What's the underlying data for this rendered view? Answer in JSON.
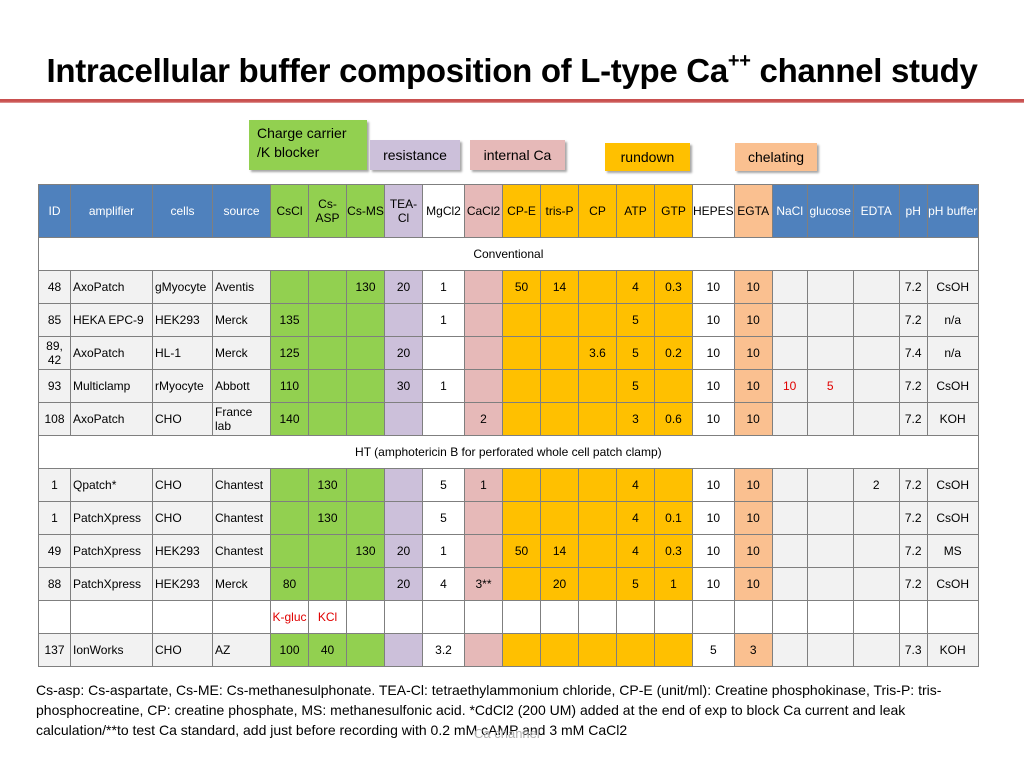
{
  "title": {
    "main": "Intracellular buffer composition of L-type Ca",
    "sup": "++",
    "tail": " channel study"
  },
  "legend": {
    "charge": "Charge carrier /K blocker",
    "resistance": "resistance",
    "internal_ca": "internal Ca",
    "rundown": "rundown",
    "chelating": "chelating"
  },
  "colors": {
    "header_blue": "#4f81bd",
    "green": "#92d050",
    "purple": "#ccc0da",
    "pink": "#e6b9b8",
    "orange": "#ffc000",
    "peach": "#fac090",
    "red_text": "#e00000",
    "title_rule": "#c9504f"
  },
  "table": {
    "headers": [
      "ID",
      "amplifier",
      "cells",
      "source",
      "CsCl",
      "Cs-ASP",
      "Cs-MS",
      "TEA-Cl",
      "MgCl2",
      "CaCl2",
      "CP-E",
      "tris-P",
      "CP",
      "ATP",
      "GTP",
      "HEPES",
      "EGTA",
      "NaCl",
      "glucose",
      "EDTA",
      "pH",
      "pH buffer"
    ],
    "section_conventional": "Conventional",
    "section_ht": "HT (amphotericin B for perforated whole cell patch clamp)",
    "rows_conventional": [
      [
        "48",
        "AxoPatch",
        "gMyocyte",
        "Aventis",
        "",
        "",
        "130",
        "20",
        "1",
        "",
        "50",
        "14",
        "",
        "4",
        "0.3",
        "10",
        "10",
        "",
        "",
        "",
        "7.2",
        "CsOH"
      ],
      [
        "85",
        "HEKA EPC-9",
        "HEK293",
        "Merck",
        "135",
        "",
        "",
        "",
        "1",
        "",
        "",
        "",
        "",
        "5",
        "",
        "10",
        "10",
        "",
        "",
        "",
        "7.2",
        "n/a"
      ],
      [
        "89, 42",
        "AxoPatch",
        "HL-1",
        "Merck",
        "125",
        "",
        "",
        "20",
        "",
        "",
        "",
        "",
        "3.6",
        "5",
        "0.2",
        "10",
        "10",
        "",
        "",
        "",
        "7.4",
        "n/a"
      ],
      [
        "93",
        "Multiclamp",
        "rMyocyte",
        "Abbott",
        "110",
        "",
        "",
        "30",
        "1",
        "",
        "",
        "",
        "",
        "5",
        "",
        "10",
        "10",
        "10",
        "5",
        "",
        "7.2",
        "CsOH"
      ],
      [
        "108",
        "AxoPatch",
        "CHO",
        "France lab",
        "140",
        "",
        "",
        "",
        "",
        "2",
        "",
        "",
        "",
        "3",
        "0.6",
        "10",
        "10",
        "",
        "",
        "",
        "7.2",
        "KOH"
      ]
    ],
    "rows_ht": [
      [
        "1",
        "Qpatch*",
        "CHO",
        "Chantest",
        "",
        "130",
        "",
        "",
        "5",
        "1",
        "",
        "",
        "",
        "4",
        "",
        "10",
        "10",
        "",
        "",
        "2",
        "7.2",
        "CsOH"
      ],
      [
        "1",
        "PatchXpress",
        "CHO",
        "Chantest",
        "",
        "130",
        "",
        "",
        "5",
        "",
        "",
        "",
        "",
        "4",
        "0.1",
        "10",
        "10",
        "",
        "",
        "",
        "7.2",
        "CsOH"
      ],
      [
        "49",
        "PatchXpress",
        "HEK293",
        "Chantest",
        "",
        "",
        "130",
        "20",
        "1",
        "",
        "50",
        "14",
        "",
        "4",
        "0.3",
        "10",
        "10",
        "",
        "",
        "",
        "7.2",
        "MS"
      ],
      [
        "88",
        "PatchXpress",
        "HEK293",
        "Merck",
        "80",
        "",
        "",
        "20",
        "4",
        "3**",
        "",
        "20",
        "",
        "5",
        "1",
        "10",
        "10",
        "",
        "",
        "",
        "7.2",
        "CsOH"
      ]
    ],
    "row_k_labels": [
      "",
      "",
      "",
      "",
      "K-gluc",
      "KCl",
      "",
      "",
      "",
      "",
      "",
      "",
      "",
      "",
      "",
      "",
      "",
      "",
      "",
      "",
      "",
      ""
    ],
    "row_last": [
      "137",
      "IonWorks",
      "CHO",
      "AZ",
      "100",
      "40",
      "",
      "",
      "3.2",
      "",
      "",
      "",
      "",
      "",
      "",
      "5",
      "3",
      "",
      "",
      "",
      "7.3",
      "KOH"
    ]
  },
  "footnote": "Cs-asp: Cs-aspartate, Cs-ME: Cs-methanesulphonate. TEA-Cl: tetraethylammonium chloride, CP-E (unit/ml): Creatine phosphokinase, Tris-P: tris-phosphocreatine, CP: creatine phosphate, MS: methanesulfonic acid. *CdCl2 (200 UM) added at the end of exp to block Ca current and leak calculation/**to test Ca standard, add just before recording with 0.2 mM cAMP and 3 mM CaCl2",
  "footer": "Ca channel"
}
